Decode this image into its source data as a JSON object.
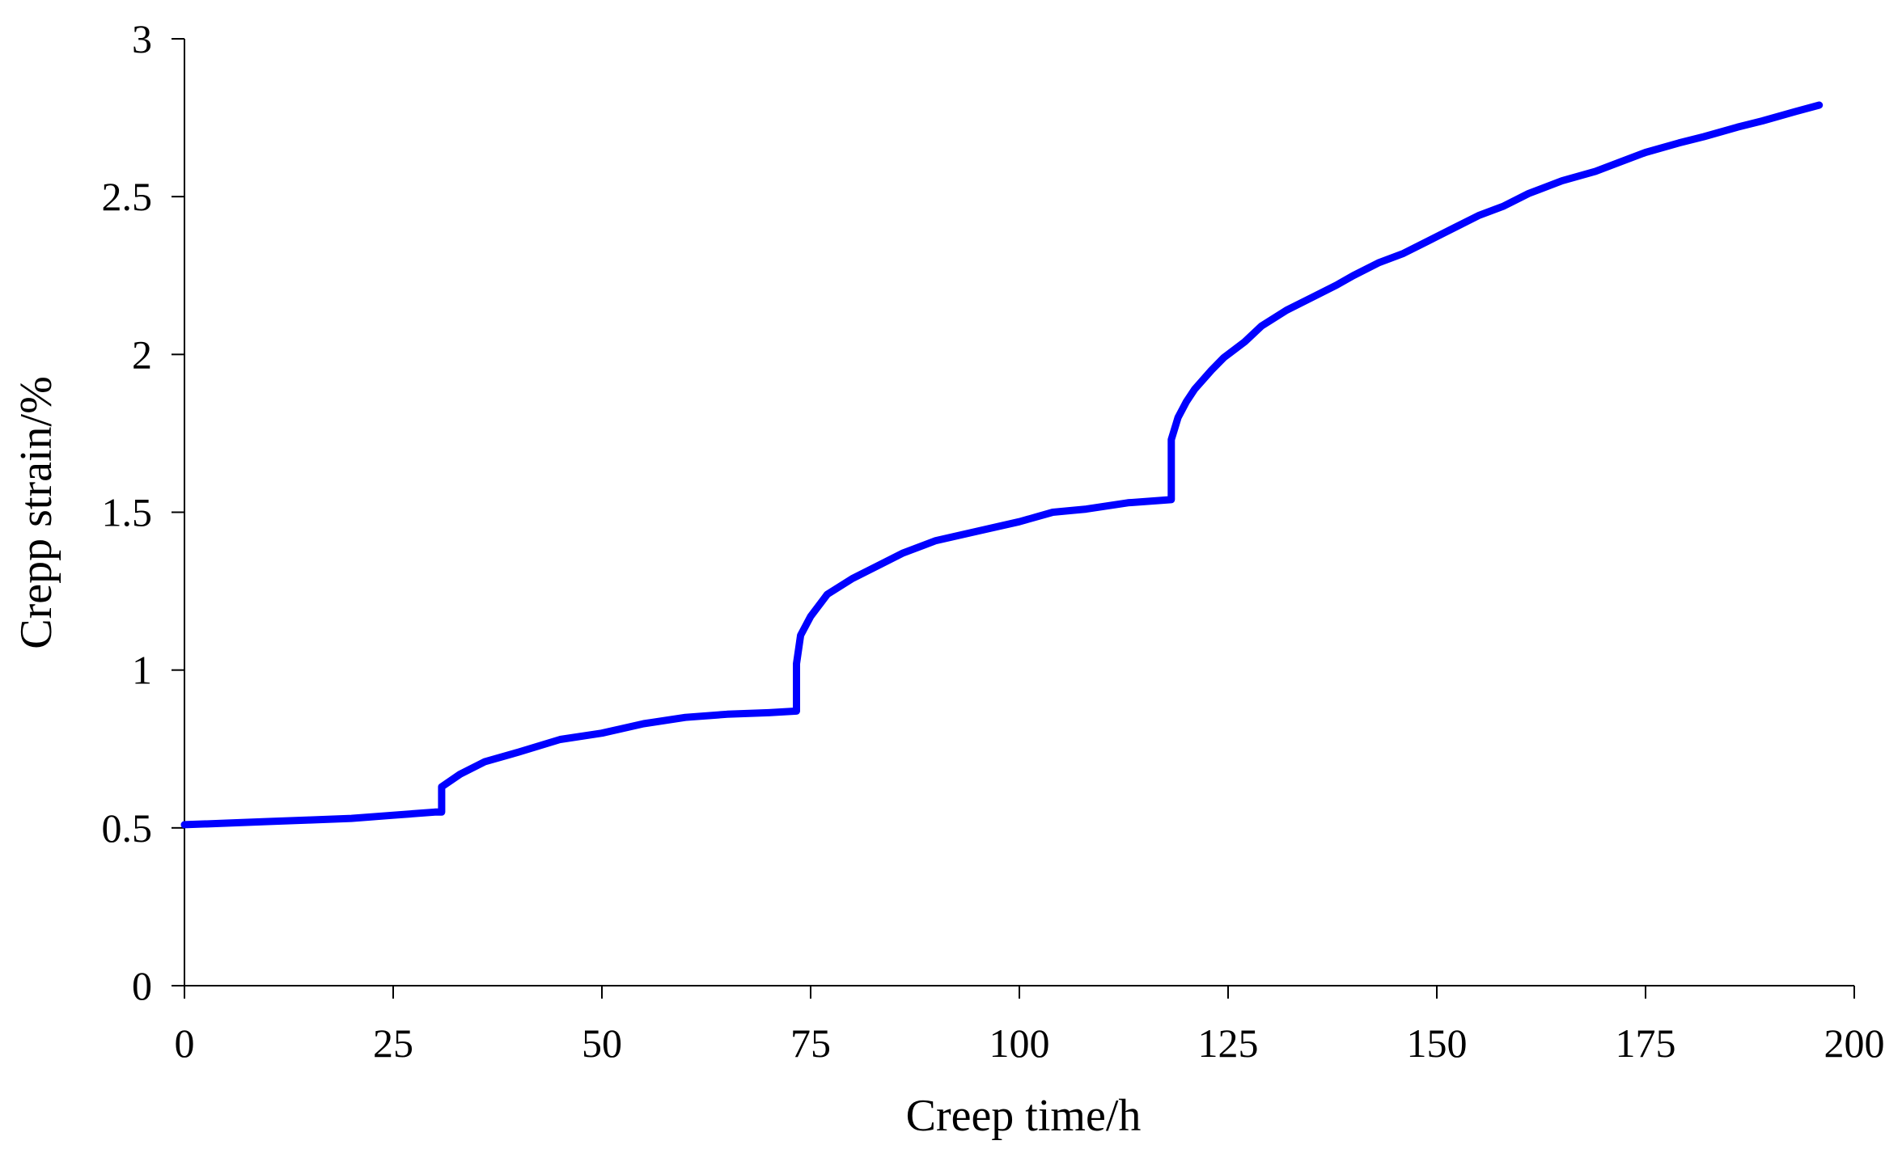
{
  "chart_data": {
    "type": "line",
    "title": "",
    "xlabel": "Creep time/h",
    "ylabel": "Crepp strain/%",
    "xlim": [
      0,
      200
    ],
    "ylim": [
      0,
      3
    ],
    "x_ticks": [
      0,
      25,
      50,
      75,
      100,
      125,
      150,
      175,
      200
    ],
    "x_tick_labels": [
      "0",
      "25",
      "50",
      "75",
      "100",
      "125",
      "150",
      "175",
      "200"
    ],
    "y_ticks": [
      0,
      0.5,
      1,
      1.5,
      2,
      2.5,
      3
    ],
    "y_tick_labels": [
      "0",
      "0.5",
      "1",
      "1.5",
      "2",
      "2.5",
      "3"
    ],
    "grid": false,
    "legend": "none",
    "line_color": "#0000FF",
    "series": [
      {
        "x": [
          0,
          5,
          10,
          15,
          20,
          25,
          30,
          30.8,
          30.8,
          33,
          36,
          40,
          45,
          50,
          55,
          60,
          65,
          70,
          73.3,
          73.3,
          73.8,
          75,
          77,
          80,
          83,
          86,
          90,
          95,
          100,
          104,
          108,
          113,
          118.2,
          118.2,
          119,
          120,
          121,
          123,
          124.5,
          127,
          129,
          132,
          135,
          138,
          140,
          143,
          146,
          149,
          152,
          155,
          158,
          161,
          165,
          169,
          172,
          175,
          179,
          182,
          186,
          189,
          193,
          195.8
        ],
        "y": [
          0.51,
          0.515,
          0.52,
          0.525,
          0.53,
          0.54,
          0.55,
          0.55,
          0.63,
          0.67,
          0.71,
          0.74,
          0.78,
          0.8,
          0.83,
          0.85,
          0.86,
          0.865,
          0.87,
          1.02,
          1.11,
          1.17,
          1.24,
          1.29,
          1.33,
          1.37,
          1.41,
          1.44,
          1.47,
          1.5,
          1.51,
          1.53,
          1.54,
          1.73,
          1.8,
          1.85,
          1.89,
          1.95,
          1.99,
          2.04,
          2.09,
          2.14,
          2.18,
          2.22,
          2.25,
          2.29,
          2.32,
          2.36,
          2.4,
          2.44,
          2.47,
          2.51,
          2.55,
          2.58,
          2.61,
          2.64,
          2.67,
          2.69,
          2.72,
          2.74,
          2.77,
          2.79
        ]
      }
    ]
  }
}
